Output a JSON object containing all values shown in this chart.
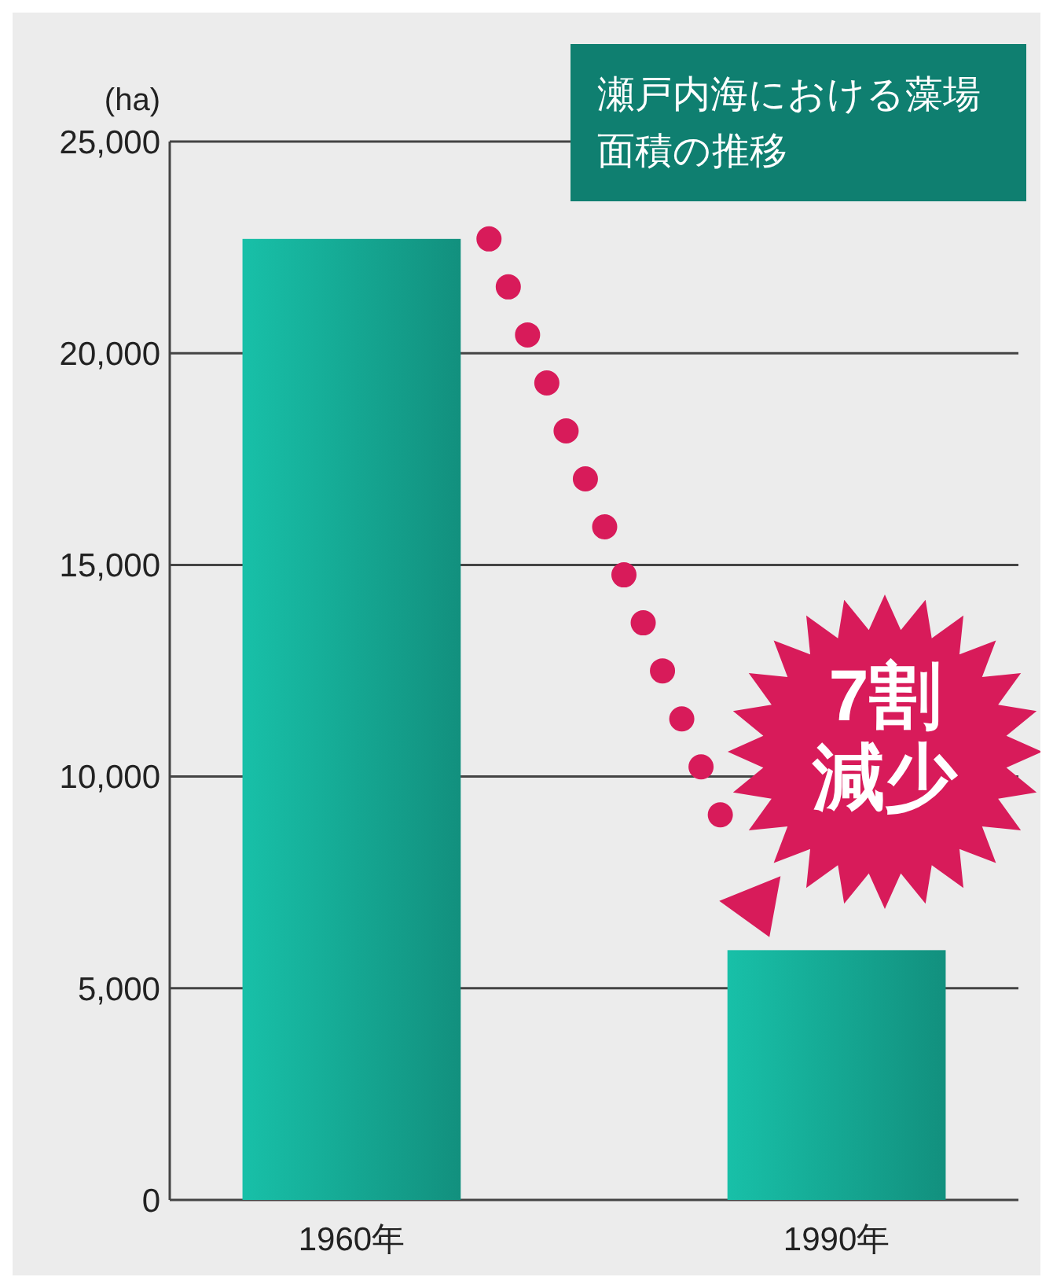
{
  "chart_data": {
    "type": "bar",
    "title": "瀬戸内海における藻場面積の推移",
    "ylabel": "(ha)",
    "categories": [
      "1960年",
      "1990年"
    ],
    "values": [
      22700,
      5900
    ],
    "color": "#12907e",
    "ylim": [
      0,
      25000
    ],
    "yticks": [
      0,
      {
        "value": 5000,
        "label": "5,000"
      },
      {
        "value": 10000,
        "label": "10,000"
      },
      {
        "value": 15000,
        "label": "15,000"
      },
      {
        "value": 20000,
        "label": "20,000"
      },
      {
        "value": 25000,
        "label": "25,000"
      }
    ],
    "grid": "y",
    "annotations": [
      "7割減少"
    ]
  }
}
